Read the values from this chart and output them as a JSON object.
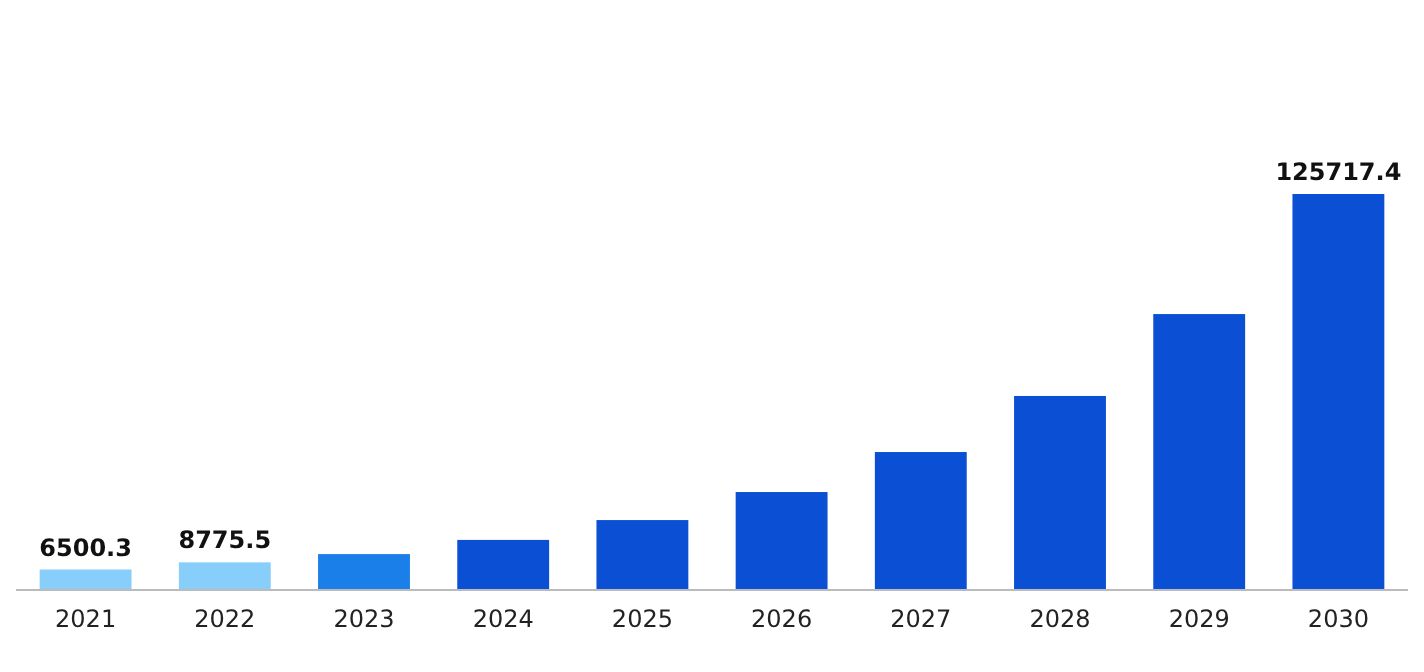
{
  "chart_data": {
    "type": "bar",
    "categories": [
      "2021",
      "2022",
      "2023",
      "2024",
      "2025",
      "2026",
      "2027",
      "2028",
      "2029",
      "2030"
    ],
    "values": [
      6500.3,
      8775.5,
      11400,
      15900,
      22200,
      31100,
      43800,
      61600,
      87600,
      125717.4
    ],
    "colors": [
      "#87cefa",
      "#87cefa",
      "#1a7fe8",
      "#0a4fd4",
      "#0a4fd4",
      "#0a4fd4",
      "#0a4fd4",
      "#0a4fd4",
      "#0a4fd4",
      "#0a4fd4"
    ],
    "value_labels": [
      "6500.3",
      "8775.5",
      null,
      null,
      null,
      null,
      null,
      null,
      null,
      "125717.4"
    ]
  }
}
